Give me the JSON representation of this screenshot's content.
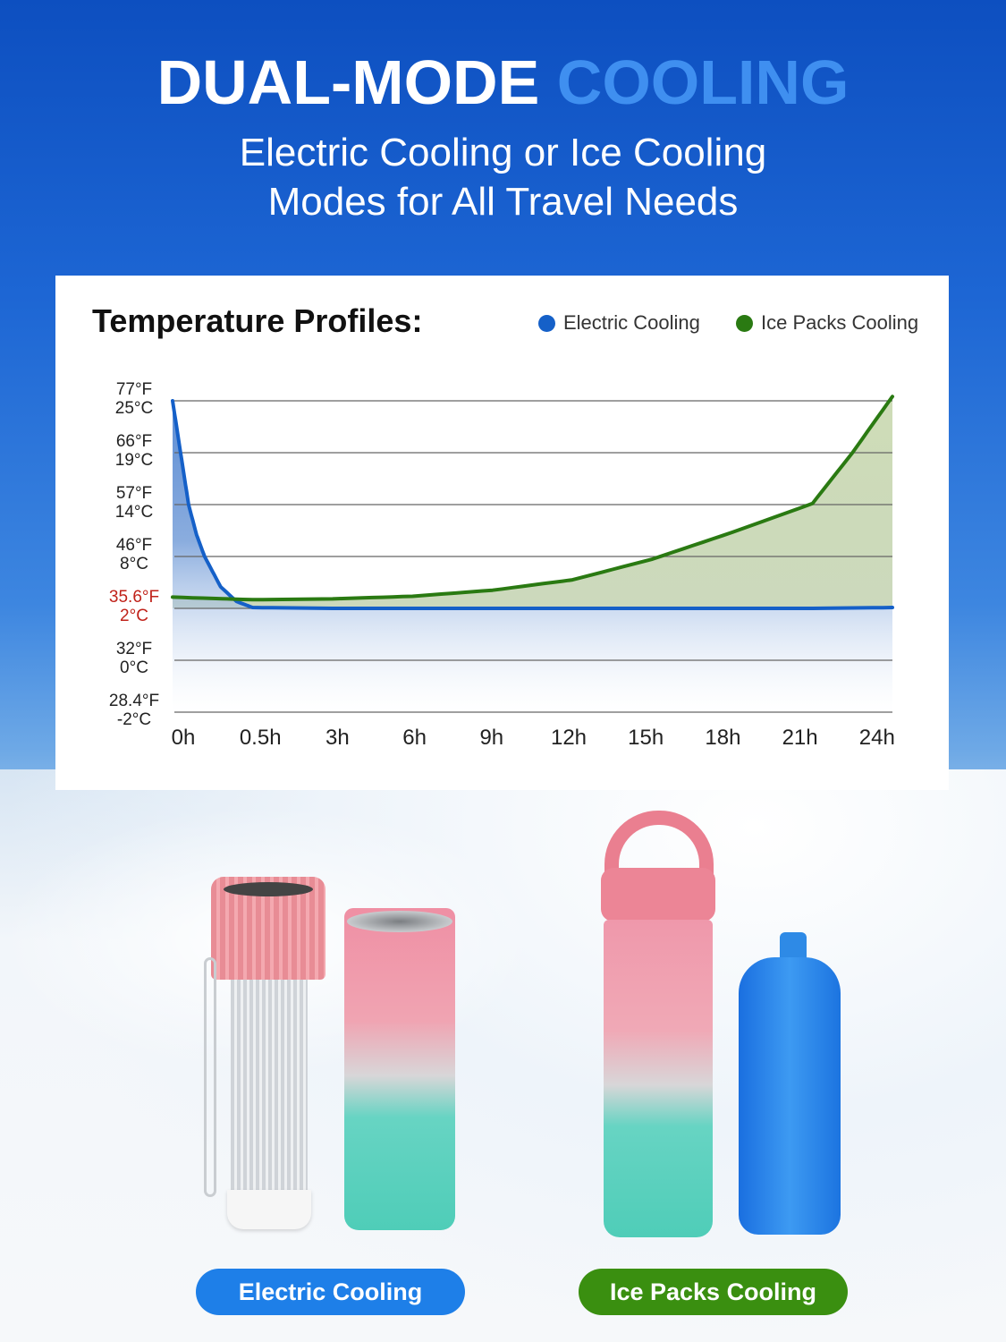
{
  "header": {
    "title_part1": "DUAL-MODE",
    "title_part2": "COOLING",
    "subtitle_line1": "Electric Cooling or Ice Cooling",
    "subtitle_line2": "Modes for All Travel Needs"
  },
  "colors": {
    "electric": "#1560c8",
    "ice": "#2a7a12",
    "highlight_label": "#c0221a",
    "button_electric": "#1e7fe8",
    "button_ice": "#3a8f10"
  },
  "chart_data": {
    "type": "line",
    "title": "Temperature Profiles:",
    "legend_position": "top-right",
    "grid": true,
    "x_ticks": [
      "0h",
      "0.5h",
      "3h",
      "6h",
      "9h",
      "12h",
      "15h",
      "18h",
      "21h",
      "24h"
    ],
    "x_tick_hours": [
      0,
      0.5,
      3,
      6,
      9,
      12,
      15,
      18,
      21,
      24
    ],
    "y_ticks": [
      {
        "f": "28.4°F",
        "c": "-2°C",
        "value_c": -2,
        "highlight": false
      },
      {
        "f": "32°F",
        "c": "0°C",
        "value_c": 0,
        "highlight": false
      },
      {
        "f": "35.6°F",
        "c": "2°C",
        "value_c": 2,
        "highlight": true
      },
      {
        "f": "46°F",
        "c": "8°C",
        "value_c": 8,
        "highlight": false
      },
      {
        "f": "57°F",
        "c": "14°C",
        "value_c": 14,
        "highlight": false
      },
      {
        "f": "66°F",
        "c": "19°C",
        "value_c": 19,
        "highlight": false
      },
      {
        "f": "77°F",
        "c": "25°C",
        "value_c": 25,
        "highlight": false
      }
    ],
    "series": [
      {
        "name": "Electric Cooling",
        "hours": [
          0,
          0.05,
          0.1,
          0.15,
          0.2,
          0.3,
          0.4,
          0.5,
          3,
          6,
          9,
          12,
          15,
          18,
          21,
          24
        ],
        "temp_c": [
          25,
          19,
          14,
          10.5,
          8,
          4.5,
          2.8,
          2.1,
          2,
          2,
          2,
          2,
          2,
          2,
          2,
          2.1
        ]
      },
      {
        "name": "Ice Packs Cooling",
        "hours": [
          0,
          0.5,
          3,
          6,
          9,
          12,
          15,
          18,
          21,
          22.5,
          24
        ],
        "temp_c": [
          3.3,
          3.0,
          3.1,
          3.4,
          4.1,
          5.3,
          7.7,
          10.8,
          14.1,
          19,
          25.5
        ]
      }
    ]
  },
  "products": {
    "electric_label": "Electric Cooling",
    "ice_label": "Ice Packs Cooling"
  }
}
